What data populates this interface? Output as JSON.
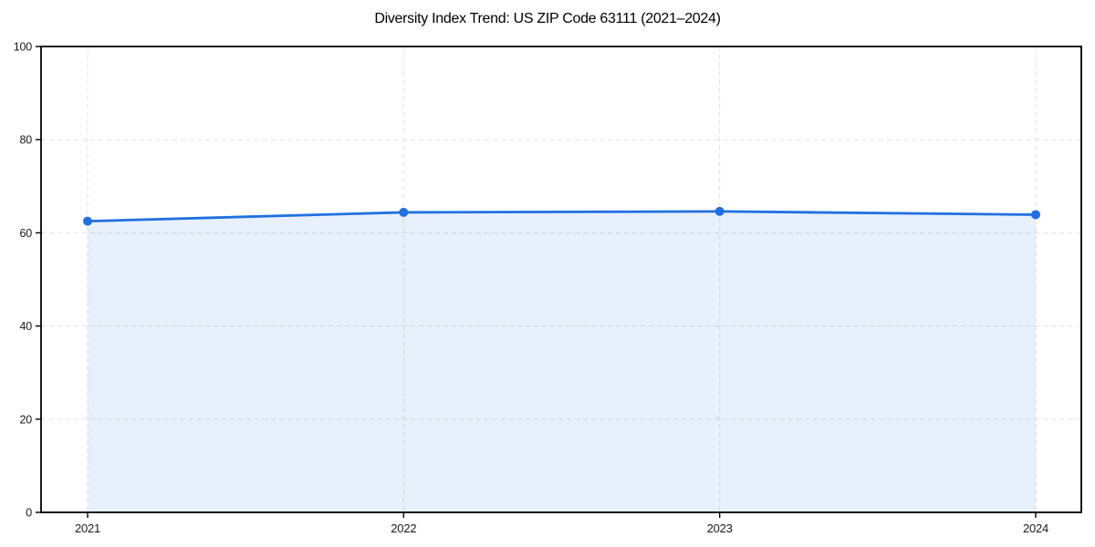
{
  "figure": {
    "background_color": "#ffffff"
  },
  "chart_data": {
    "type": "area",
    "title": "Diversity Index Trend: US ZIP Code 63111 (2021–2024)",
    "x": [
      "2021",
      "2022",
      "2023",
      "2024"
    ],
    "series": [
      {
        "name": "Diversity Index",
        "values": [
          62.5,
          64.4,
          64.6,
          63.9
        ]
      }
    ],
    "xlabel": "",
    "ylabel": "",
    "ylim": [
      0,
      100
    ],
    "yticks": [
      0,
      20,
      40,
      60,
      80,
      100
    ],
    "grid": true,
    "grid_style": "dashed",
    "legend_position": "none",
    "line_color": "#2170e0",
    "marker_color": "#2170e0",
    "area_fill_color": "rgba(33, 112, 224, 0.10)",
    "grid_color": "#e2e2e2",
    "spine_color": "#000000",
    "tick_color": "#000000",
    "tick_label_color": "#1a1a1a",
    "title_color": "#000000"
  }
}
